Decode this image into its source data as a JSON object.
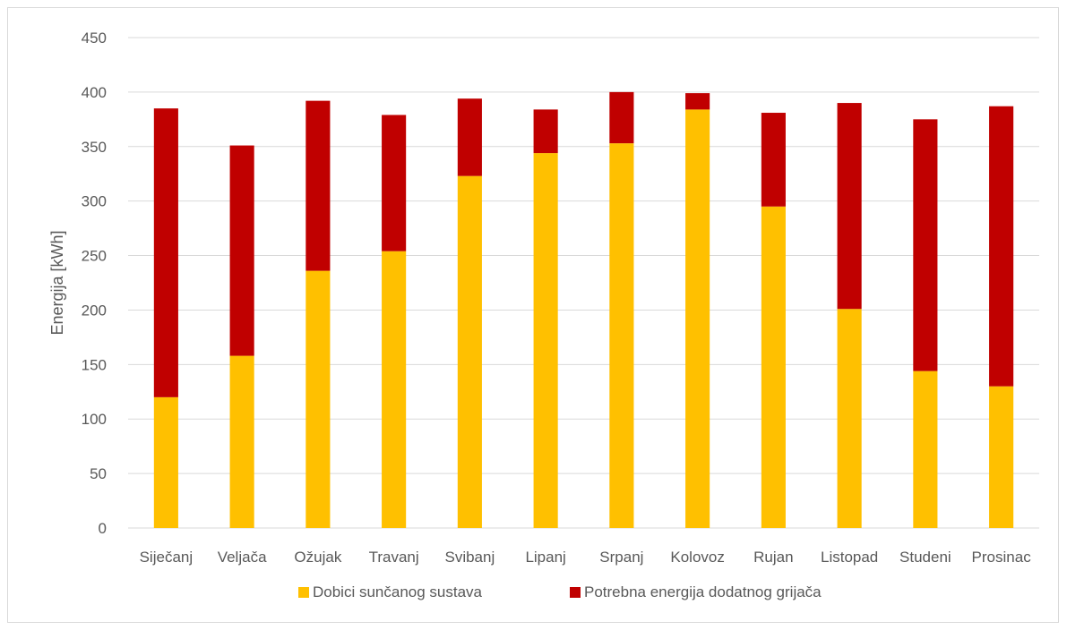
{
  "chart_data": {
    "type": "bar",
    "stacked": true,
    "title": "",
    "xlabel": "",
    "ylabel": "Energija [kWh]",
    "ylim": [
      0,
      450
    ],
    "yticks": [
      0,
      50,
      100,
      150,
      200,
      250,
      300,
      350,
      400,
      450
    ],
    "grid": true,
    "legend_position": "bottom",
    "categories": [
      "Siječanj",
      "Veljača",
      "Ožujak",
      "Travanj",
      "Svibanj",
      "Lipanj",
      "Srpanj",
      "Kolovoz",
      "Rujan",
      "Listopad",
      "Studeni",
      "Prosinac"
    ],
    "series": [
      {
        "name": "Dobici sunčanog sustava",
        "color": "#ffc000",
        "values": [
          120,
          158,
          236,
          254,
          323,
          344,
          353,
          384,
          295,
          201,
          144,
          130
        ]
      },
      {
        "name": "Potrebna energija dodatnog grijača",
        "color": "#c00000",
        "values": [
          265,
          193,
          156,
          125,
          71,
          40,
          47,
          15,
          86,
          189,
          231,
          257
        ]
      }
    ]
  }
}
